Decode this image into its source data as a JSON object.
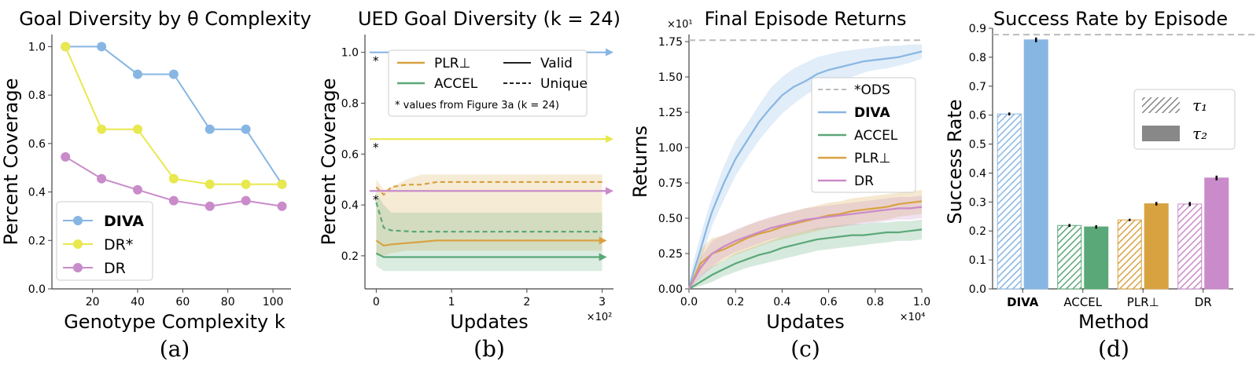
{
  "panels": [
    {
      "title": "Goal Diversity by θ Complexity",
      "xlabel": "Genotype Complexity k",
      "ylabel": "Percent Coverage",
      "caption": "(a)"
    },
    {
      "title": "UED Goal Diversity (k = 24)",
      "xlabel": "Updates",
      "ylabel": "Percent Coverage",
      "caption": "(b)",
      "xexp": "×10²",
      "footnote": "* values from Figure 3a (k = 24)"
    },
    {
      "title": "Final Episode Returns",
      "xlabel": "Updates",
      "ylabel": "Returns",
      "caption": "(c)",
      "xexp": "×10⁴",
      "yexp": "×10¹"
    },
    {
      "title": "Success Rate by Episode",
      "xlabel": "Method",
      "ylabel": "Success Rate",
      "caption": "(d)"
    }
  ],
  "colors": {
    "DIVA": "#87b6e3",
    "DR*": "#e8e84f",
    "DR": "#c98bc9",
    "ACCEL": "#5aa877",
    "PLR": "#d8a241",
    "ODS": "#bbbbbb",
    "axis": "#444444"
  },
  "chart_data": [
    {
      "type": "line",
      "title": "Goal Diversity by θ Complexity",
      "xlabel": "Genotype Complexity k",
      "ylabel": "Percent Coverage",
      "x": [
        8,
        24,
        40,
        56,
        72,
        88,
        104
      ],
      "xticks": [
        20,
        40,
        60,
        80,
        100
      ],
      "xlim": [
        2,
        108
      ],
      "ylim": [
        0,
        1.05
      ],
      "yticks": [
        0.0,
        0.2,
        0.4,
        0.6,
        0.8,
        1.0
      ],
      "legend_position": "bottom-left",
      "series": [
        {
          "name": "DIVA",
          "values": [
            1.0,
            1.0,
            0.886,
            0.886,
            0.659,
            0.659,
            0.432
          ]
        },
        {
          "name": "DR*",
          "values": [
            1.0,
            0.659,
            0.659,
            0.455,
            0.432,
            0.432,
            0.432
          ]
        },
        {
          "name": "DR",
          "values": [
            0.545,
            0.455,
            0.409,
            0.364,
            0.341,
            0.364,
            0.341
          ]
        }
      ]
    },
    {
      "type": "line",
      "title": "UED Goal Diversity (k = 24)",
      "xlabel": "Updates",
      "ylabel": "Percent Coverage",
      "x_scale_label": "×10²",
      "xlim": [
        -0.15,
        3.15
      ],
      "xticks": [
        0,
        1,
        2,
        3
      ],
      "ylim": [
        0.07,
        1.07
      ],
      "yticks": [
        0.2,
        0.4,
        0.6,
        0.8,
        1.0
      ],
      "legend_position": "top",
      "legend_entries": [
        "PLR⊥",
        "ACCEL",
        "Valid",
        "Unique"
      ],
      "reference_lines": [
        {
          "name": "DIVA",
          "value": 1.0,
          "marker": "*"
        },
        {
          "name": "DR*",
          "value": 0.659,
          "marker": "*"
        },
        {
          "name": "DR",
          "value": 0.455,
          "marker": "*"
        }
      ],
      "series": [
        {
          "name": "PLR⊥",
          "style": "solid",
          "x": [
            0,
            0.1,
            0.2,
            0.4,
            0.6,
            0.8,
            1.0,
            1.5,
            2.0,
            2.5,
            3.0
          ],
          "values": [
            0.26,
            0.24,
            0.245,
            0.25,
            0.255,
            0.26,
            0.26,
            0.26,
            0.26,
            0.26,
            0.26
          ],
          "band_low": [
            0.2,
            0.2,
            0.21,
            0.22,
            0.22,
            0.22,
            0.22,
            0.22,
            0.22,
            0.22,
            0.22
          ],
          "band_high": [
            0.5,
            0.46,
            0.47,
            0.5,
            0.52,
            0.52,
            0.52,
            0.52,
            0.52,
            0.52,
            0.52
          ]
        },
        {
          "name": "PLR⊥",
          "style": "dashed",
          "x": [
            0,
            0.1,
            0.2,
            0.4,
            0.6,
            0.8,
            1.0,
            1.5,
            2.0,
            2.5,
            3.0
          ],
          "values": [
            0.47,
            0.44,
            0.47,
            0.48,
            0.48,
            0.49,
            0.49,
            0.49,
            0.49,
            0.49,
            0.49
          ]
        },
        {
          "name": "ACCEL",
          "style": "solid",
          "x": [
            0,
            0.1,
            0.2,
            0.5,
            1.0,
            2.0,
            3.0
          ],
          "values": [
            0.21,
            0.195,
            0.195,
            0.195,
            0.195,
            0.195,
            0.195
          ],
          "band_low": [
            0.16,
            0.14,
            0.14,
            0.14,
            0.14,
            0.14,
            0.14
          ],
          "band_high": [
            0.45,
            0.4,
            0.37,
            0.37,
            0.37,
            0.37,
            0.37
          ]
        },
        {
          "name": "ACCEL",
          "style": "dashed",
          "x": [
            0,
            0.05,
            0.1,
            0.2,
            0.5,
            1.0,
            2.0,
            3.0
          ],
          "values": [
            0.41,
            0.36,
            0.31,
            0.3,
            0.295,
            0.295,
            0.295,
            0.295
          ]
        }
      ]
    },
    {
      "type": "line",
      "title": "Final Episode Returns",
      "xlabel": "Updates",
      "ylabel": "Returns",
      "x_scale_label": "×10⁴",
      "y_scale_label": "×10¹",
      "xlim": [
        0,
        1.0
      ],
      "xticks": [
        0.0,
        0.2,
        0.4,
        0.6,
        0.8,
        1.0
      ],
      "ylim": [
        0,
        1.8
      ],
      "yticks": [
        0.0,
        0.25,
        0.5,
        0.75,
        1.0,
        1.25,
        1.5,
        1.75
      ],
      "legend_position": "center-right",
      "reference_lines": [
        {
          "name": "*ODS",
          "value": 1.76
        }
      ],
      "series": [
        {
          "name": "DIVA",
          "x": [
            0,
            0.02,
            0.05,
            0.08,
            0.1,
            0.15,
            0.2,
            0.25,
            0.3,
            0.35,
            0.4,
            0.45,
            0.5,
            0.55,
            0.6,
            0.65,
            0.7,
            0.75,
            0.8,
            0.85,
            0.9,
            0.95,
            1.0
          ],
          "values": [
            0.0,
            0.12,
            0.28,
            0.45,
            0.55,
            0.75,
            0.92,
            1.05,
            1.18,
            1.28,
            1.37,
            1.43,
            1.47,
            1.52,
            1.55,
            1.57,
            1.59,
            1.61,
            1.62,
            1.63,
            1.64,
            1.66,
            1.68
          ],
          "band_low": [
            0.0,
            0.05,
            0.2,
            0.35,
            0.45,
            0.63,
            0.8,
            0.93,
            1.05,
            1.15,
            1.24,
            1.31,
            1.37,
            1.42,
            1.45,
            1.48,
            1.5,
            1.53,
            1.55,
            1.56,
            1.58,
            1.6,
            1.63
          ],
          "band_high": [
            0.05,
            0.2,
            0.38,
            0.55,
            0.65,
            0.87,
            1.05,
            1.17,
            1.3,
            1.42,
            1.5,
            1.56,
            1.6,
            1.64,
            1.66,
            1.68,
            1.69,
            1.7,
            1.71,
            1.72,
            1.72,
            1.73,
            1.73
          ]
        },
        {
          "name": "ACCEL",
          "x": [
            0,
            0.05,
            0.1,
            0.15,
            0.2,
            0.25,
            0.3,
            0.35,
            0.4,
            0.45,
            0.5,
            0.55,
            0.6,
            0.65,
            0.7,
            0.75,
            0.8,
            0.85,
            0.9,
            0.95,
            1.0
          ],
          "values": [
            0.0,
            0.05,
            0.1,
            0.14,
            0.18,
            0.21,
            0.24,
            0.26,
            0.29,
            0.31,
            0.33,
            0.35,
            0.36,
            0.37,
            0.38,
            0.38,
            0.39,
            0.4,
            0.4,
            0.41,
            0.42
          ],
          "band_low": [
            0.0,
            0.02,
            0.05,
            0.09,
            0.12,
            0.15,
            0.17,
            0.19,
            0.21,
            0.23,
            0.25,
            0.27,
            0.28,
            0.29,
            0.3,
            0.31,
            0.32,
            0.33,
            0.34,
            0.34,
            0.35
          ],
          "band_high": [
            0.0,
            0.1,
            0.16,
            0.2,
            0.25,
            0.28,
            0.31,
            0.34,
            0.37,
            0.39,
            0.41,
            0.43,
            0.44,
            0.45,
            0.46,
            0.46,
            0.47,
            0.47,
            0.48,
            0.48,
            0.49
          ]
        },
        {
          "name": "PLR⊥",
          "x": [
            0,
            0.05,
            0.1,
            0.15,
            0.2,
            0.25,
            0.3,
            0.35,
            0.4,
            0.45,
            0.5,
            0.55,
            0.6,
            0.65,
            0.7,
            0.75,
            0.8,
            0.85,
            0.9,
            0.95,
            1.0
          ],
          "values": [
            0.0,
            0.18,
            0.25,
            0.28,
            0.32,
            0.36,
            0.39,
            0.41,
            0.44,
            0.46,
            0.48,
            0.5,
            0.52,
            0.53,
            0.55,
            0.56,
            0.57,
            0.58,
            0.6,
            0.61,
            0.62
          ],
          "band_low": [
            0.0,
            0.1,
            0.15,
            0.2,
            0.24,
            0.27,
            0.3,
            0.33,
            0.35,
            0.37,
            0.39,
            0.41,
            0.43,
            0.44,
            0.46,
            0.47,
            0.48,
            0.49,
            0.51,
            0.52,
            0.53
          ],
          "band_high": [
            0.0,
            0.28,
            0.36,
            0.38,
            0.41,
            0.45,
            0.48,
            0.5,
            0.53,
            0.55,
            0.57,
            0.59,
            0.61,
            0.62,
            0.64,
            0.65,
            0.66,
            0.67,
            0.68,
            0.69,
            0.7
          ]
        },
        {
          "name": "DR",
          "x": [
            0,
            0.05,
            0.1,
            0.15,
            0.2,
            0.25,
            0.3,
            0.35,
            0.4,
            0.45,
            0.5,
            0.55,
            0.6,
            0.65,
            0.7,
            0.75,
            0.8,
            0.85,
            0.9,
            0.95,
            1.0
          ],
          "values": [
            0.0,
            0.15,
            0.25,
            0.3,
            0.34,
            0.37,
            0.4,
            0.43,
            0.45,
            0.47,
            0.49,
            0.5,
            0.51,
            0.52,
            0.53,
            0.54,
            0.55,
            0.56,
            0.57,
            0.57,
            0.58
          ],
          "band_low": [
            0.0,
            0.08,
            0.16,
            0.22,
            0.26,
            0.29,
            0.32,
            0.35,
            0.37,
            0.39,
            0.41,
            0.42,
            0.43,
            0.44,
            0.45,
            0.46,
            0.47,
            0.48,
            0.49,
            0.49,
            0.5
          ],
          "band_high": [
            0.0,
            0.22,
            0.34,
            0.38,
            0.42,
            0.45,
            0.48,
            0.51,
            0.53,
            0.55,
            0.57,
            0.58,
            0.59,
            0.6,
            0.61,
            0.62,
            0.63,
            0.64,
            0.65,
            0.65,
            0.66
          ]
        }
      ]
    },
    {
      "type": "bar",
      "title": "Success Rate by Episode",
      "xlabel": "Method",
      "ylabel": "Success Rate",
      "categories": [
        "DIVA",
        "ACCEL",
        "PLR⊥",
        "DR"
      ],
      "ylim": [
        0,
        0.9
      ],
      "yticks": [
        0.0,
        0.1,
        0.2,
        0.3,
        0.4,
        0.5,
        0.6,
        0.7,
        0.8,
        0.9
      ],
      "legend_position": "upper-right",
      "reference_lines": [
        {
          "name": "*ODS",
          "value": 0.878
        }
      ],
      "series": [
        {
          "name": "τ₁",
          "pattern": "hatched",
          "values": [
            0.604,
            0.219,
            0.238,
            0.293
          ],
          "errors": [
            0.005,
            0.005,
            0.004,
            0.007
          ]
        },
        {
          "name": "τ₂",
          "pattern": "solid",
          "values": [
            0.86,
            0.214,
            0.294,
            0.383
          ],
          "errors": [
            0.008,
            0.006,
            0.006,
            0.008
          ]
        }
      ]
    }
  ]
}
